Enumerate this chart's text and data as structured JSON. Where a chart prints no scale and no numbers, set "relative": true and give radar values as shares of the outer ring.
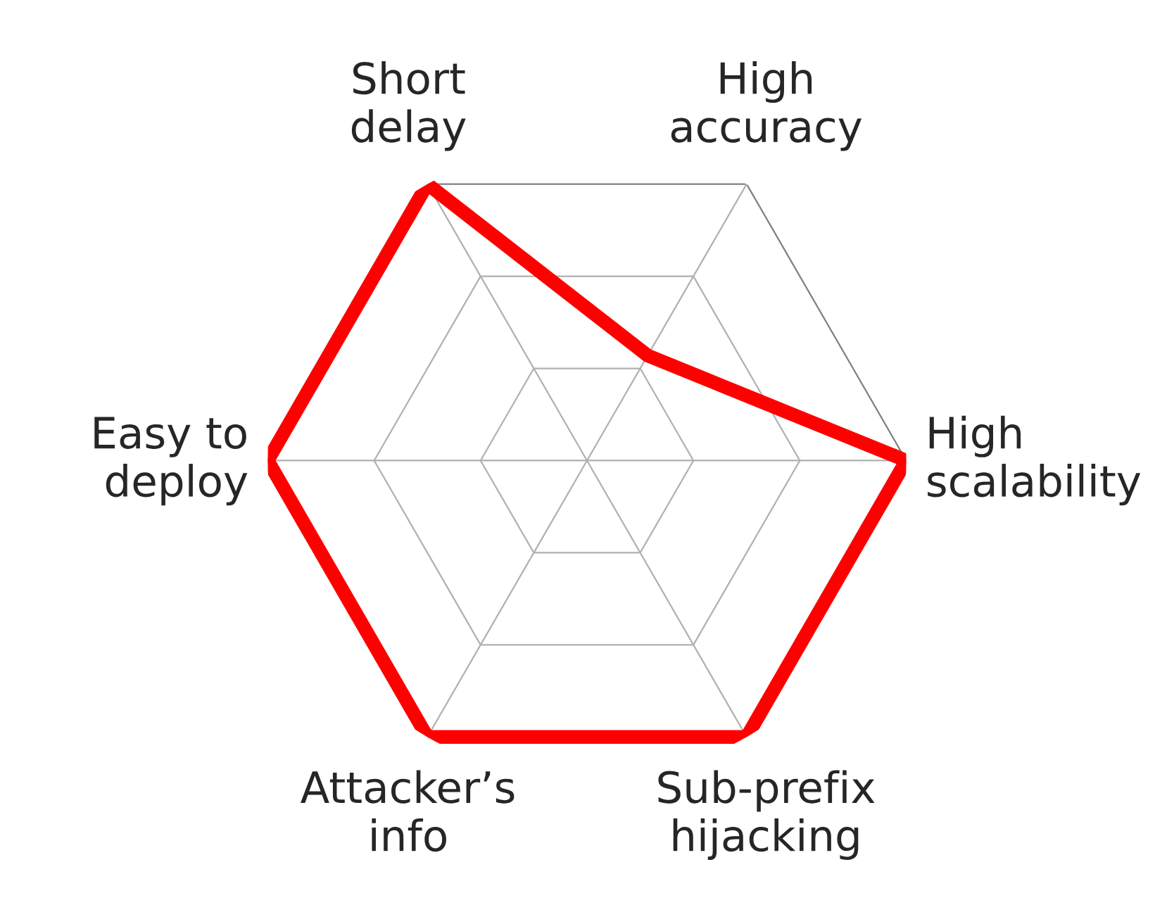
{
  "chart_data": {
    "type": "radar",
    "relative": true,
    "grid": true,
    "categories": [
      "Short delay",
      "High accuracy",
      "High scalability",
      "Sub-prefix hijacking",
      "Attacker’s info",
      "Easy to deploy"
    ],
    "series": [
      {
        "color": "#ff0000",
        "values": [
          1,
          0.38,
          1,
          1,
          1,
          1
        ]
      }
    ]
  }
}
